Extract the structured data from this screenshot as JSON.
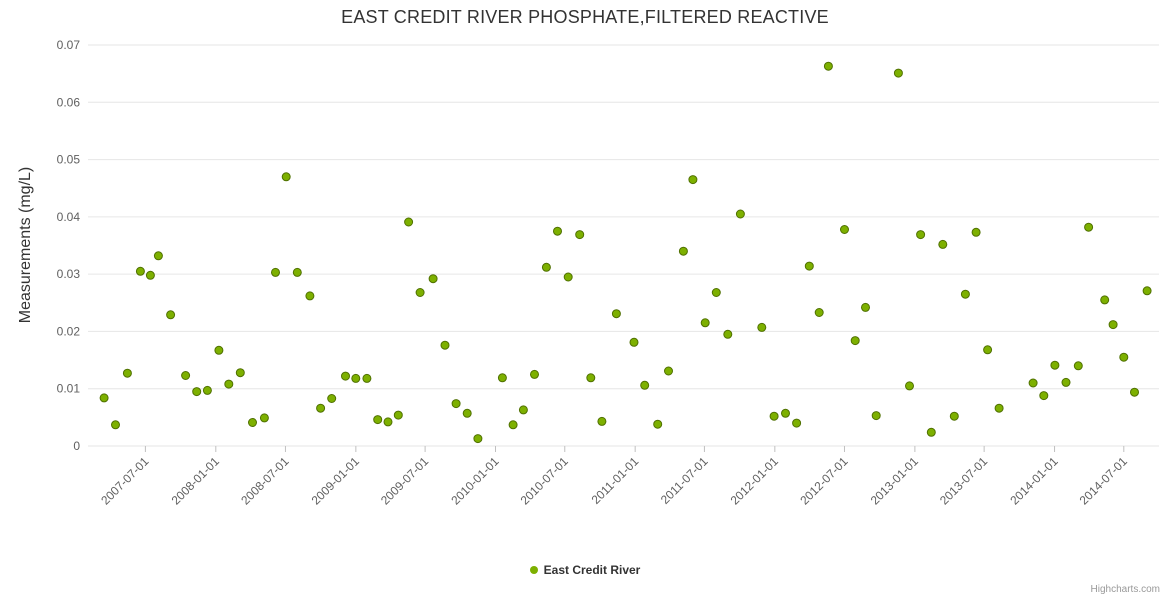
{
  "chart_data": {
    "type": "scatter",
    "title": "EAST CREDIT RIVER PHOSPHATE,FILTERED REACTIVE",
    "xlabel": "",
    "ylabel": "Measurements (mg/L)",
    "ylim": [
      0,
      0.07
    ],
    "y_ticks": [
      0,
      0.01,
      0.02,
      0.03,
      0.04,
      0.05,
      0.06,
      0.07
    ],
    "x_range": [
      "2007-02-01",
      "2014-10-01"
    ],
    "x_ticks": [
      "2007-07-01",
      "2008-01-01",
      "2008-07-01",
      "2009-01-01",
      "2009-07-01",
      "2010-01-01",
      "2010-07-01",
      "2011-01-01",
      "2011-07-01",
      "2012-01-01",
      "2012-07-01",
      "2013-01-01",
      "2013-07-01",
      "2014-01-01",
      "2014-07-01"
    ],
    "grid": true,
    "legend": {
      "position": "bottom",
      "items": [
        {
          "label": "East Credit River",
          "color": "#7db000"
        }
      ]
    },
    "credits": "Highcharts.com",
    "colors": {
      "background": "#ffffff",
      "grid": "#e6e6e6",
      "tick": "#c0c0c0",
      "tick_label": "#606060",
      "title": "#333333",
      "series_green": "#7db000"
    },
    "series": [
      {
        "name": "East Credit River",
        "color": "#7db000",
        "marker_stroke": "#4f7000",
        "points": [
          [
            "2007-03-15",
            0.0084
          ],
          [
            "2007-04-14",
            0.0037
          ],
          [
            "2007-05-15",
            0.0127
          ],
          [
            "2007-06-18",
            0.0305
          ],
          [
            "2007-07-14",
            0.0298
          ],
          [
            "2007-08-04",
            0.0332
          ],
          [
            "2007-09-05",
            0.0229
          ],
          [
            "2007-10-14",
            0.0123
          ],
          [
            "2007-11-12",
            0.0095
          ],
          [
            "2007-12-10",
            0.0097
          ],
          [
            "2008-01-09",
            0.0167
          ],
          [
            "2008-02-04",
            0.0108
          ],
          [
            "2008-03-05",
            0.0128
          ],
          [
            "2008-04-06",
            0.0041
          ],
          [
            "2008-05-07",
            0.0049
          ],
          [
            "2008-06-05",
            0.0303
          ],
          [
            "2008-07-03",
            0.047
          ],
          [
            "2008-08-01",
            0.0303
          ],
          [
            "2008-09-03",
            0.0262
          ],
          [
            "2008-10-01",
            0.0066
          ],
          [
            "2008-10-30",
            0.0083
          ],
          [
            "2008-12-05",
            0.0122
          ],
          [
            "2009-01-01",
            0.0118
          ],
          [
            "2009-01-30",
            0.0118
          ],
          [
            "2009-02-27",
            0.0046
          ],
          [
            "2009-03-26",
            0.0042
          ],
          [
            "2009-04-22",
            0.0054
          ],
          [
            "2009-05-19",
            0.0391
          ],
          [
            "2009-06-18",
            0.0268
          ],
          [
            "2009-07-22",
            0.0292
          ],
          [
            "2009-08-22",
            0.0176
          ],
          [
            "2009-09-20",
            0.0074
          ],
          [
            "2009-10-19",
            0.0057
          ],
          [
            "2009-11-16",
            0.0013
          ],
          [
            "2010-01-19",
            0.0119
          ],
          [
            "2010-02-16",
            0.0037
          ],
          [
            "2010-03-15",
            0.0063
          ],
          [
            "2010-04-13",
            0.0125
          ],
          [
            "2010-05-14",
            0.0312
          ],
          [
            "2010-06-12",
            0.0375
          ],
          [
            "2010-07-10",
            0.0295
          ],
          [
            "2010-08-09",
            0.0369
          ],
          [
            "2010-09-07",
            0.0119
          ],
          [
            "2010-10-06",
            0.0043
          ],
          [
            "2010-11-13",
            0.0231
          ],
          [
            "2010-12-29",
            0.0181
          ],
          [
            "2011-01-26",
            0.0106
          ],
          [
            "2011-03-01",
            0.0038
          ],
          [
            "2011-03-29",
            0.0131
          ],
          [
            "2011-05-07",
            0.034
          ],
          [
            "2011-06-01",
            0.0465
          ],
          [
            "2011-07-03",
            0.0215
          ],
          [
            "2011-08-01",
            0.0268
          ],
          [
            "2011-08-31",
            0.0195
          ],
          [
            "2011-10-03",
            0.0405
          ],
          [
            "2011-11-28",
            0.0207
          ],
          [
            "2011-12-30",
            0.0052
          ],
          [
            "2012-01-29",
            0.0057
          ],
          [
            "2012-02-27",
            0.004
          ],
          [
            "2012-03-31",
            0.0314
          ],
          [
            "2012-04-26",
            0.0233
          ],
          [
            "2012-05-20",
            0.0663
          ],
          [
            "2012-07-01",
            0.0378
          ],
          [
            "2012-07-29",
            0.0184
          ],
          [
            "2012-08-25",
            0.0242
          ],
          [
            "2012-09-22",
            0.0053
          ],
          [
            "2012-11-19",
            0.0651
          ],
          [
            "2012-12-18",
            0.0105
          ],
          [
            "2013-01-16",
            0.0369
          ],
          [
            "2013-02-13",
            0.0024
          ],
          [
            "2013-03-15",
            0.0352
          ],
          [
            "2013-04-14",
            0.0052
          ],
          [
            "2013-05-13",
            0.0265
          ],
          [
            "2013-06-10",
            0.0373
          ],
          [
            "2013-07-10",
            0.0168
          ],
          [
            "2013-08-09",
            0.0066
          ],
          [
            "2013-11-06",
            0.011
          ],
          [
            "2013-12-04",
            0.0088
          ],
          [
            "2014-01-02",
            0.0141
          ],
          [
            "2014-01-31",
            0.0111
          ],
          [
            "2014-03-04",
            0.014
          ],
          [
            "2014-03-31",
            0.0382
          ],
          [
            "2014-05-12",
            0.0255
          ],
          [
            "2014-06-03",
            0.0212
          ],
          [
            "2014-07-01",
            0.0155
          ],
          [
            "2014-07-29",
            0.0094
          ],
          [
            "2014-08-31",
            0.0271
          ]
        ]
      }
    ]
  }
}
